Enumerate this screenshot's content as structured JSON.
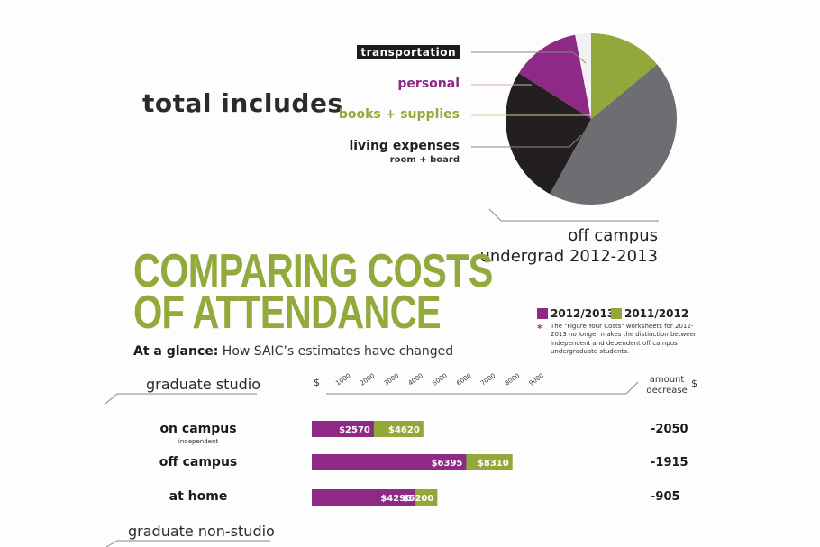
{
  "pie": {
    "heading": "total includes",
    "legend": {
      "transportation": "transportation",
      "personal": "personal",
      "books": "books + supplies",
      "living": "living expenses",
      "living_sub": "room + board"
    },
    "caption_line1": "off campus",
    "caption_line2": "undergrad 2012-2013"
  },
  "comparison": {
    "title_line1": "COMPARING COSTS",
    "title_line2": "OF ATTENDANCE",
    "subtitle_bold": "At a glance:",
    "subtitle_rest": " How SAIC’s estimates have changed",
    "key_2012": "2012/2013",
    "key_2011": "2011/2012",
    "note_star": "*",
    "note": "The \"Figure Your Costs\" worksheets for 2012-2013 no longer makes the distinction between independent and dependent off campus undergraduate students.",
    "section_studio": "graduate studio",
    "section_nonstudio": "graduate non-studio",
    "amount_header": "amount decrease",
    "amount_dollar": "$",
    "axis_dollar": "$",
    "rows": [
      {
        "label": "on campus",
        "sublabel": "independent",
        "v2012_label": "$2570",
        "v2011_label": "$4620",
        "decrease": "-2050"
      },
      {
        "label": "off campus",
        "sublabel": "",
        "v2012_label": "$6395",
        "v2011_label": "$8310",
        "decrease": "-1915"
      },
      {
        "label": "at home",
        "sublabel": "",
        "v2012_label": "$4295",
        "v2011_label": "$5200",
        "decrease": "-905"
      }
    ]
  },
  "colors": {
    "purple": "#8e2a86",
    "green": "#93a83b",
    "black": "#231f20",
    "gray": "#6d6e71"
  },
  "chart_data": [
    {
      "type": "pie",
      "title": "off campus undergrad 2012-2013",
      "labels": [
        "books + supplies",
        "living expenses (gray)",
        "living expenses (black)",
        "personal",
        "transportation"
      ],
      "values": [
        14,
        44,
        26,
        13,
        3
      ]
    },
    {
      "type": "bar",
      "orientation": "horizontal",
      "stacked": "overlay",
      "title": "graduate studio",
      "categories": [
        "on campus",
        "off campus",
        "at home"
      ],
      "series": [
        {
          "name": "2012/2013",
          "values": [
            2570,
            6395,
            4295
          ]
        },
        {
          "name": "2011/2012",
          "values": [
            4620,
            8310,
            5200
          ]
        }
      ],
      "ticks": [
        1000,
        2000,
        3000,
        4000,
        5000,
        6000,
        7000,
        8000,
        9000
      ],
      "xlim": [
        0,
        10000
      ],
      "amount_decrease": [
        -2050,
        -1915,
        -905
      ]
    }
  ]
}
